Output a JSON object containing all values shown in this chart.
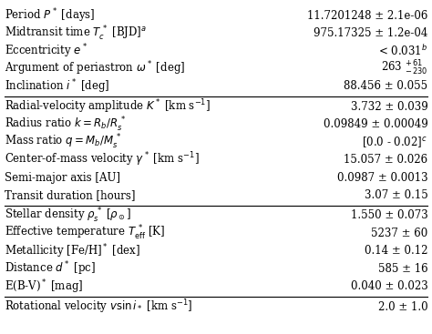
{
  "rows": [
    {
      "label": "Period $P^*$ [days]",
      "value": "11.7201248 ± 2.1e-06",
      "section": 0
    },
    {
      "label": "Midtransit time $T_c^{\\,*}$ [BJD]$^a$",
      "value": "975.17325 ± 1.2e-04",
      "section": 0
    },
    {
      "label": "Eccentricity $e^*$",
      "value": "< 0.031$^b$",
      "section": 0
    },
    {
      "label": "Argument of periastron $\\omega^*$ [deg]",
      "value": "263 $^{+\\,61}_{-\\,230}$",
      "section": 0
    },
    {
      "label": "Inclination $i^*$ [deg]",
      "value": "88.456 ± 0.055",
      "section": 0
    },
    {
      "label": "Radial-velocity amplitude $K^*$ [km s$^{-1}$]",
      "value": "3.732 ± 0.039",
      "section": 1
    },
    {
      "label": "Radius ratio $k = R_b/R_s^{\\,*}$",
      "value": "0.09849 ± 0.00049",
      "section": 1
    },
    {
      "label": "Mass ratio $q = M_b/M_s^{\\,*}$",
      "value": "[0.0 - 0.02]$^c$",
      "section": 1
    },
    {
      "label": "Center-of-mass velocity $\\gamma^*$ [km s$^{-1}$]",
      "value": "15.057 ± 0.026",
      "section": 1
    },
    {
      "label": "Semi-major axis [AU]",
      "value": "0.0987 ± 0.0013",
      "section": 1
    },
    {
      "label": "Transit duration [hours]",
      "value": "3.07 ± 0.15",
      "section": 1
    },
    {
      "label": "Stellar density $\\rho_s^{\\,*}$ [$\\rho_\\odot$]",
      "value": "1.550 ± 0.073",
      "section": 2
    },
    {
      "label": "Effective temperature $T_{\\mathrm{eff}}^{\\,*}$ [K]",
      "value": "5237 ± 60",
      "section": 2
    },
    {
      "label": "Metallicity [Fe/H]$^*$ [dex]",
      "value": "0.14 ± 0.12",
      "section": 2
    },
    {
      "label": "Distance $d^*$ [pc]",
      "value": "585 ± 16",
      "section": 2
    },
    {
      "label": "E(B-V)$^*$ [mag]",
      "value": "0.040 ± 0.023",
      "section": 2
    },
    {
      "label": "Rotational velocity $v\\sin i_*$ [km s$^{-1}$]",
      "value": "2.0 ± 1.0",
      "section": 3
    }
  ],
  "section_breaks": [
    5,
    11,
    16
  ],
  "bg_color": "#ffffff",
  "text_color": "#000000",
  "line_color": "#000000",
  "font_size": 8.5
}
